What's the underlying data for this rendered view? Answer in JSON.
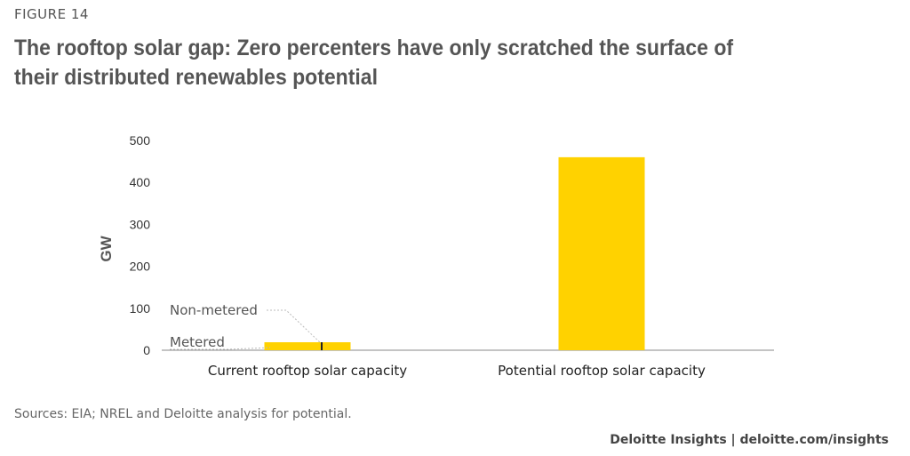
{
  "figure_label": "FIGURE 14",
  "title": "The rooftop solar gap: Zero percenters have only scratched the surface of their distributed renewables potential",
  "sources": "Sources: EIA; NREL and Deloitte analysis for potential.",
  "footer": "Deloitte Insights | deloitte.com/insights",
  "colors": {
    "bar": "#FFD200",
    "axis": "#888888",
    "text": "#555555"
  },
  "chart_data": {
    "type": "bar",
    "ylabel": "GW",
    "xlabel": "",
    "ylim": [
      0,
      500
    ],
    "yticks": [
      "500",
      "400",
      "300",
      "200",
      "100",
      "0"
    ],
    "ytick_values": [
      500,
      400,
      300,
      200,
      100,
      0
    ],
    "categories": [
      "Current rooftop solar capacity",
      "Potential rooftop solar capacity"
    ],
    "values": [
      19,
      460
    ],
    "grid": false,
    "annotations": [
      {
        "label": "Non-metered",
        "target": "Current rooftop solar capacity",
        "value": 2
      },
      {
        "label": "Metered",
        "target": "Current rooftop solar capacity",
        "value": 17
      }
    ]
  }
}
